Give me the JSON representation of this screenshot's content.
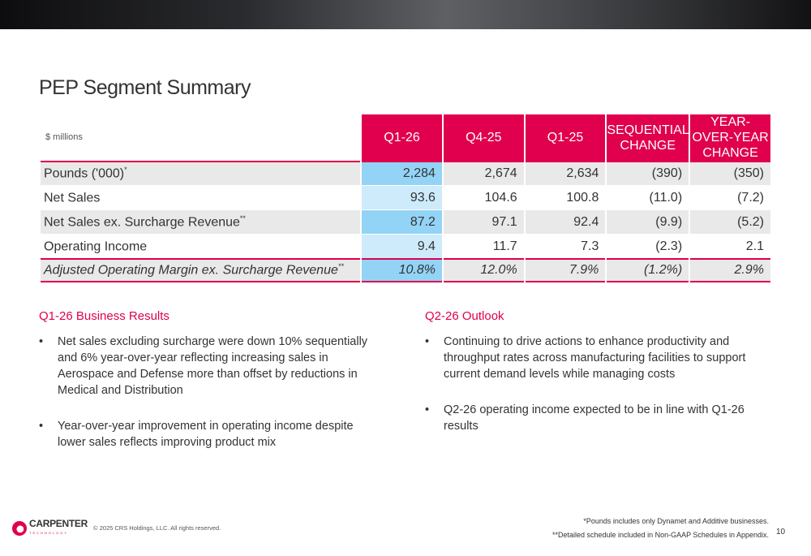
{
  "title": "PEP Segment Summary",
  "table": {
    "unit_label": "$ millions",
    "columns": [
      "Q1-26",
      "Q4-25",
      "Q1-25",
      "SEQUENTIAL CHANGE",
      "YEAR-OVER-YEAR CHANGE"
    ],
    "rows": [
      {
        "label": "Pounds ('000)",
        "sup": "*",
        "values": [
          "2,284",
          "2,674",
          "2,634",
          "(390)",
          "(350)"
        ]
      },
      {
        "label": "Net Sales",
        "sup": "",
        "values": [
          "93.6",
          "104.6",
          "100.8",
          "(11.0)",
          "(7.2)"
        ]
      },
      {
        "label": "Net Sales ex. Surcharge Revenue",
        "sup": "**",
        "values": [
          "87.2",
          "97.1",
          "92.4",
          "(9.9)",
          "(5.2)"
        ]
      },
      {
        "label": "Operating Income",
        "sup": "",
        "values": [
          "9.4",
          "11.7",
          "7.3",
          "(2.3)",
          "2.1"
        ]
      },
      {
        "label": "Adjusted Operating Margin ex. Surcharge Revenue",
        "sup": "**",
        "values": [
          "10.8%",
          "12.0%",
          "7.9%",
          "(1.2%)",
          "2.9%"
        ]
      }
    ]
  },
  "results": {
    "heading": "Q1-26 Business Results",
    "bullets": [
      "Net sales excluding surcharge were down 10% sequentially and 6% year-over-year reflecting increasing sales in Aerospace and Defense more than offset by reductions in Medical and Distribution",
      "Year-over-year improvement in operating income despite lower sales reflects improving product mix"
    ]
  },
  "outlook": {
    "heading": "Q2-26 Outlook",
    "bullets": [
      "Continuing to drive actions to enhance productivity and throughput rates across manufacturing facilities to support current demand levels while managing costs",
      "Q2-26 operating income expected to be in line with Q1-26 results"
    ]
  },
  "footer": {
    "logo_name": "CARPENTER",
    "logo_sub": "TECHNOLOGY",
    "copyright": "© 2025 CRS Holdings, LLC. All rights reserved.",
    "note1": "*Pounds includes only Dynamet and Additive businesses.",
    "note2": "**Detailed schedule included in Non-GAAP Schedules in Appendix.",
    "page_number": "10"
  },
  "colors": {
    "accent": "#e0004d",
    "highlight_dark": "#93d4f6",
    "highlight_light": "#cdebfb"
  }
}
